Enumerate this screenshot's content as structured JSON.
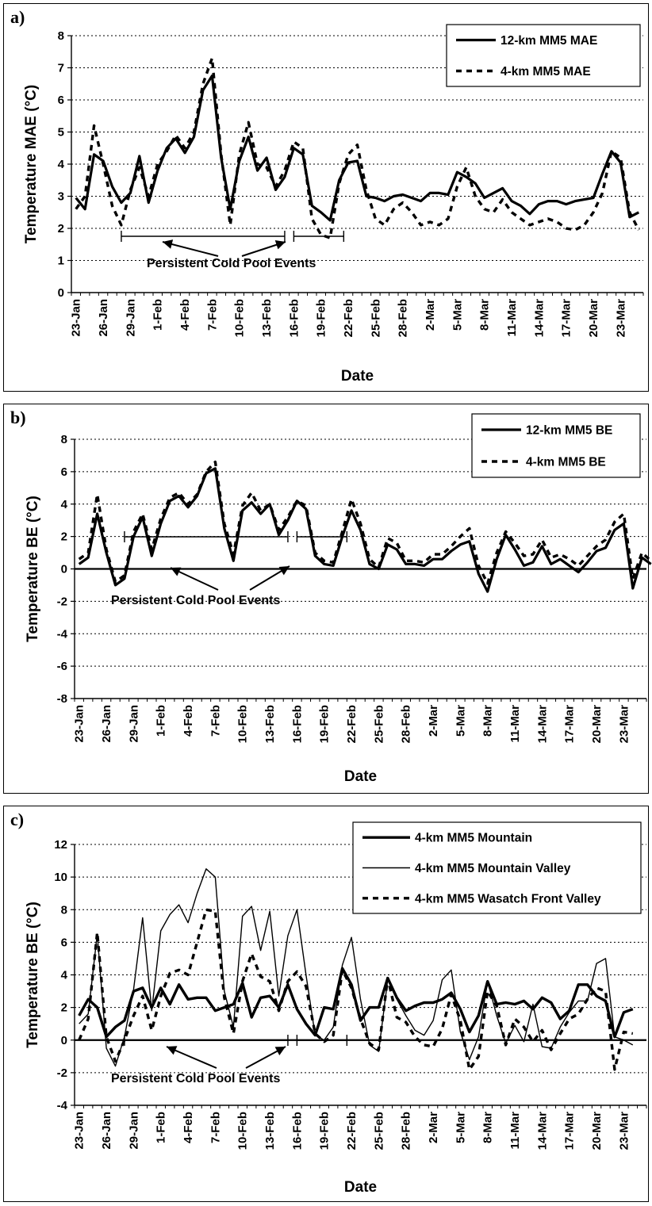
{
  "dates": [
    "23-Jan",
    "26-Jan",
    "29-Jan",
    "1-Feb",
    "4-Feb",
    "7-Feb",
    "10-Feb",
    "13-Feb",
    "16-Feb",
    "19-Feb",
    "22-Feb",
    "25-Feb",
    "28-Feb",
    "2-Mar",
    "5-Mar",
    "8-Mar",
    "11-Mar",
    "14-Mar",
    "17-Mar",
    "20-Mar",
    "23-Mar"
  ],
  "annotation": "Persistent Cold Pool Events",
  "chart_data": [
    {
      "panel": "a)",
      "type": "line",
      "ylabel": "Temperature MAE (°C)",
      "xlabel": "Date",
      "ylim": [
        0,
        8
      ],
      "yticks": [
        0,
        1,
        2,
        3,
        4,
        5,
        6,
        7,
        8
      ],
      "grid": "horizontal dotted",
      "legend_position": "top-right",
      "events": [
        [
          5.5,
          23.5
        ],
        [
          24.5,
          30
        ]
      ],
      "series": [
        {
          "name": "12-km MM5 MAE",
          "style": "solid",
          "values": [
            2.95,
            2.6,
            4.3,
            4.1,
            3.3,
            2.8,
            3.1,
            4.25,
            2.8,
            3.8,
            4.5,
            4.8,
            4.35,
            4.85,
            6.3,
            6.75,
            4.2,
            2.6,
            4.1,
            4.85,
            3.8,
            4.2,
            3.2,
            3.6,
            4.5,
            4.3,
            2.7,
            2.5,
            2.25,
            3.5,
            4.05,
            4.1,
            3.0,
            2.95,
            2.85,
            3.0,
            3.05,
            2.95,
            2.85,
            3.1,
            3.1,
            3.05,
            3.75,
            3.6,
            3.4,
            2.95,
            3.1,
            3.25,
            2.85,
            2.7,
            2.45,
            2.75,
            2.85,
            2.85,
            2.75,
            2.85,
            2.9,
            2.95,
            3.7,
            4.4,
            4.05,
            2.35,
            2.5
          ]
        },
        {
          "name": "4-km MM5 MAE",
          "style": "dashed",
          "values": [
            2.6,
            3.0,
            5.2,
            4.0,
            2.7,
            2.1,
            3.2,
            3.9,
            3.0,
            4.0,
            4.4,
            4.9,
            4.5,
            5.0,
            6.5,
            7.3,
            4.3,
            2.1,
            4.3,
            5.3,
            4.0,
            3.9,
            3.3,
            3.8,
            4.7,
            4.5,
            2.3,
            1.8,
            1.7,
            3.4,
            4.3,
            4.6,
            3.2,
            2.3,
            2.1,
            2.6,
            2.8,
            2.5,
            2.1,
            2.2,
            2.1,
            2.3,
            3.3,
            3.9,
            3.0,
            2.6,
            2.5,
            2.9,
            2.5,
            2.3,
            2.1,
            2.2,
            2.3,
            2.2,
            2.0,
            1.95,
            2.1,
            2.5,
            3.1,
            4.4,
            4.2,
            2.5,
            1.95
          ]
        }
      ]
    },
    {
      "panel": "b)",
      "type": "line",
      "ylabel": "Temperature BE (°C)",
      "xlabel": "Date",
      "ylim": [
        -8,
        8
      ],
      "yticks": [
        -8,
        -6,
        -4,
        -2,
        0,
        2,
        4,
        6,
        8
      ],
      "grid": "horizontal dotted",
      "legend_position": "top-right",
      "events": [
        [
          5.5,
          23.5
        ],
        [
          24.5,
          30
        ]
      ],
      "series": [
        {
          "name": "12-km MM5 BE",
          "style": "solid",
          "values": [
            0.3,
            0.7,
            3.4,
            1.0,
            -1.0,
            -0.6,
            2.0,
            3.2,
            0.8,
            2.8,
            4.2,
            4.5,
            3.8,
            4.5,
            5.9,
            6.2,
            2.5,
            0.5,
            3.6,
            4.1,
            3.4,
            4.0,
            2.1,
            3.0,
            4.2,
            3.7,
            0.8,
            0.3,
            0.2,
            2.0,
            3.6,
            2.4,
            0.3,
            0.0,
            1.5,
            1.2,
            0.3,
            0.3,
            0.2,
            0.6,
            0.6,
            1.1,
            1.5,
            1.7,
            -0.3,
            -1.4,
            0.6,
            2.1,
            1.2,
            0.2,
            0.4,
            1.4,
            0.3,
            0.6,
            0.2,
            -0.2,
            0.4,
            1.1,
            1.3,
            2.4,
            2.8,
            -1.2,
            0.7,
            0.3
          ]
        },
        {
          "name": "4-km MM5 BE",
          "style": "dashed",
          "values": [
            0.6,
            1.0,
            4.6,
            1.2,
            -0.8,
            -0.4,
            2.3,
            3.4,
            1.2,
            3.1,
            4.4,
            4.7,
            4.0,
            4.6,
            6.0,
            6.6,
            2.8,
            0.9,
            3.9,
            4.7,
            3.6,
            4.0,
            2.4,
            3.2,
            4.2,
            3.9,
            1.0,
            0.5,
            0.4,
            2.3,
            4.3,
            2.8,
            0.6,
            0.1,
            1.9,
            1.6,
            0.5,
            0.5,
            0.4,
            0.9,
            0.9,
            1.4,
            2.0,
            2.5,
            0.2,
            -0.9,
            1.0,
            2.3,
            1.6,
            0.8,
            0.9,
            1.8,
            0.7,
            0.9,
            0.6,
            0.2,
            0.8,
            1.4,
            1.8,
            2.9,
            3.4,
            -0.6,
            1.0,
            0.5
          ]
        }
      ]
    },
    {
      "panel": "c)",
      "type": "line",
      "ylabel": "Temperature BE (°C)",
      "xlabel": "Date",
      "ylim": [
        -4,
        12
      ],
      "yticks": [
        -4,
        -2,
        0,
        2,
        4,
        6,
        8,
        10,
        12
      ],
      "grid": "horizontal dotted",
      "legend_position": "top-right",
      "events": [
        [
          5.5,
          23.5
        ],
        [
          24.5,
          30
        ]
      ],
      "series": [
        {
          "name": "4-km MM5 Mountain",
          "style": "thick",
          "values": [
            1.5,
            2.5,
            2.0,
            0.2,
            0.8,
            1.2,
            3.0,
            3.2,
            2.0,
            3.2,
            2.2,
            3.4,
            2.5,
            2.6,
            2.6,
            1.8,
            2.0,
            2.2,
            3.5,
            1.4,
            2.6,
            2.7,
            2.0,
            3.4,
            1.9,
            1.0,
            0.3,
            2.0,
            1.9,
            4.4,
            3.4,
            1.2,
            2.0,
            2.0,
            3.8,
            2.6,
            1.8,
            2.1,
            2.3,
            2.3,
            2.5,
            2.9,
            1.9,
            0.5,
            1.5,
            3.6,
            2.2,
            2.3,
            2.2,
            2.4,
            1.9,
            2.6,
            2.3,
            1.3,
            1.8,
            3.4,
            3.4,
            2.7,
            2.4,
            0.2,
            1.7,
            1.9
          ]
        },
        {
          "name": "4-km MM5 Mountain Valley",
          "style": "thin",
          "values": [
            1.0,
            1.6,
            6.5,
            -0.5,
            -1.6,
            0.2,
            3.1,
            7.5,
            1.8,
            6.7,
            7.7,
            8.3,
            7.2,
            9.0,
            10.5,
            10.0,
            3.0,
            0.8,
            7.6,
            8.2,
            5.5,
            7.9,
            2.7,
            6.4,
            8.0,
            4.0,
            0.3,
            0.0,
            0.8,
            4.6,
            6.3,
            2.5,
            -0.3,
            -0.7,
            3.7,
            2.5,
            1.5,
            0.6,
            0.3,
            1.2,
            3.7,
            4.3,
            0.5,
            -1.2,
            0.2,
            3.6,
            1.5,
            -0.2,
            0.9,
            -0.1,
            2.2,
            -0.4,
            -0.5,
            0.8,
            1.7,
            2.4,
            2.4,
            4.7,
            5.0,
            0.2,
            0.0,
            -0.3
          ]
        },
        {
          "name": "4-km MM5 Wasatch Front Valley",
          "style": "dashed",
          "values": [
            0.0,
            1.3,
            6.6,
            0.2,
            -1.3,
            0.0,
            1.5,
            2.7,
            0.6,
            2.7,
            4.1,
            4.3,
            4.0,
            6.0,
            8.0,
            7.9,
            2.6,
            0.4,
            3.6,
            5.3,
            3.9,
            3.6,
            1.8,
            3.6,
            4.2,
            3.3,
            0.4,
            -0.1,
            0.3,
            4.3,
            3.2,
            1.3,
            -0.2,
            -0.6,
            3.8,
            1.4,
            1.1,
            0.2,
            -0.3,
            -0.4,
            0.7,
            2.8,
            1.2,
            -1.8,
            -1.0,
            3.0,
            2.1,
            -0.3,
            1.3,
            0.8,
            -0.1,
            0.6,
            -0.6,
            0.4,
            1.3,
            1.6,
            2.5,
            3.2,
            3.0,
            -1.8,
            0.5,
            0.4
          ]
        }
      ]
    }
  ]
}
